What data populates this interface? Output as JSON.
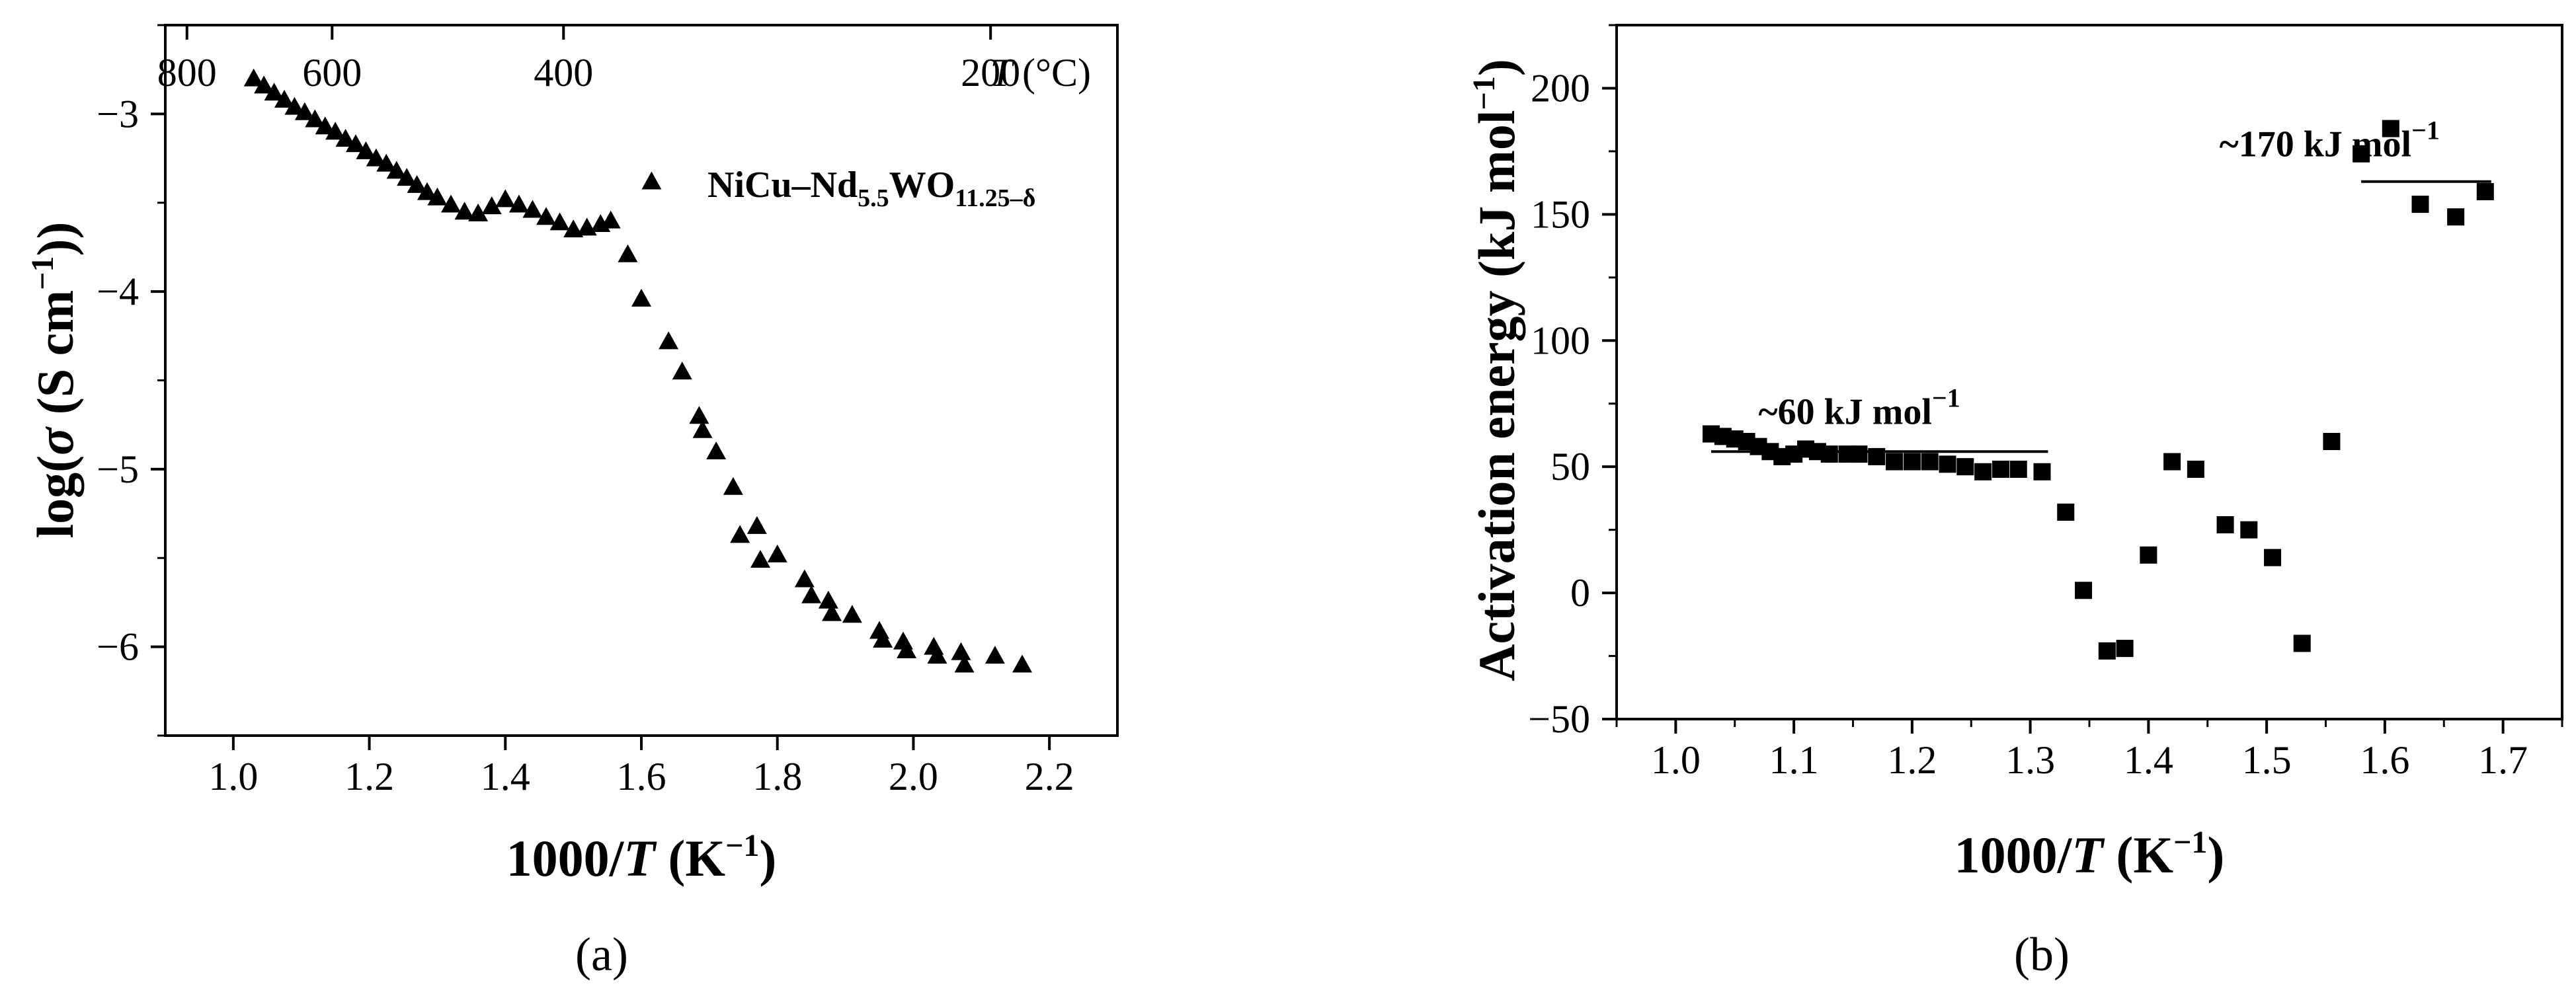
{
  "chart_data": [
    {
      "type": "scatter",
      "panel_label": "(a)",
      "marker": "triangle",
      "xlabel_prefix": "1000/",
      "xlabel_var": "T",
      "xlabel_unit": " (K",
      "xlabel_exp": "−1",
      "xlabel_close": ")",
      "ylabel_prefix": "log(",
      "ylabel_sigma": "σ",
      "ylabel_unit": " (S cm",
      "ylabel_exp": "−1",
      "ylabel_close": "))",
      "xlim": [
        0.9,
        2.3
      ],
      "ylim": [
        -6.5,
        -2.5
      ],
      "x_ticks": [
        1.0,
        1.2,
        1.4,
        1.6,
        1.8,
        2.0,
        2.2
      ],
      "x_tick_labels": [
        "1.0",
        "1.2",
        "1.4",
        "1.6",
        "1.8",
        "2.0",
        "2.2"
      ],
      "y_ticks": [
        -3,
        -4,
        -5,
        -6
      ],
      "y_tick_labels": [
        "−3",
        "−4",
        "−5",
        "−6"
      ],
      "top_axis_values_celsius": [
        800,
        600,
        400,
        200
      ],
      "top_axis_labels": [
        "800",
        "600",
        "400",
        "200"
      ],
      "top_axis_title_var": "T",
      "top_axis_title_unit": " (°C)",
      "legend_text_main": "NiCu–Nd",
      "legend_sub1": "5.5",
      "legend_mid": "WO",
      "legend_sub2": "11.25–δ",
      "series": [
        {
          "name": "NiCu–Nd5.5WO11.25–δ",
          "x": [
            1.03,
            1.045,
            1.06,
            1.075,
            1.09,
            1.105,
            1.12,
            1.135,
            1.15,
            1.165,
            1.18,
            1.195,
            1.21,
            1.225,
            1.24,
            1.255,
            1.27,
            1.285,
            1.3,
            1.32,
            1.34,
            1.36,
            1.38,
            1.4,
            1.42,
            1.44,
            1.46,
            1.48,
            1.5,
            1.52,
            1.54,
            1.555,
            1.58,
            1.6,
            1.615,
            1.64,
            1.66,
            1.685,
            1.69,
            1.71,
            1.735,
            1.745,
            1.77,
            1.775,
            1.8,
            1.84,
            1.85,
            1.875,
            1.88,
            1.91,
            1.95,
            1.955,
            1.985,
            1.99,
            2.03,
            2.035,
            2.07,
            2.075,
            2.12,
            2.16
          ],
          "y": [
            -2.8,
            -2.84,
            -2.88,
            -2.92,
            -2.96,
            -2.99,
            -3.03,
            -3.07,
            -3.1,
            -3.14,
            -3.17,
            -3.21,
            -3.25,
            -3.28,
            -3.32,
            -3.36,
            -3.4,
            -3.44,
            -3.47,
            -3.51,
            -3.55,
            -3.56,
            -3.52,
            -3.48,
            -3.51,
            -3.54,
            -3.58,
            -3.61,
            -3.65,
            -3.64,
            -3.62,
            -3.6,
            -3.79,
            -4.04,
            -3.38,
            -4.28,
            -4.45,
            -4.7,
            -4.78,
            -4.9,
            -5.1,
            -5.37,
            -5.32,
            -5.51,
            -5.48,
            -5.62,
            -5.71,
            -5.74,
            -5.81,
            -5.82,
            -5.91,
            -5.96,
            -5.97,
            -6.02,
            -6.0,
            -6.05,
            -6.03,
            -6.1,
            -6.05,
            -6.1
          ]
        }
      ]
    },
    {
      "type": "scatter",
      "panel_label": "(b)",
      "marker": "square",
      "xlabel_prefix": "1000/",
      "xlabel_var": "T",
      "xlabel_unit": " (K",
      "xlabel_exp": "−1",
      "xlabel_close": ")",
      "ylabel_main": "Activation energy (kJ mol",
      "ylabel_exp": "−1",
      "ylabel_close": ")",
      "xlim": [
        0.95,
        1.75
      ],
      "ylim": [
        -50,
        225
      ],
      "x_ticks": [
        1.0,
        1.1,
        1.2,
        1.3,
        1.4,
        1.5,
        1.6,
        1.7
      ],
      "x_tick_labels": [
        "1.0",
        "1.1",
        "1.2",
        "1.3",
        "1.4",
        "1.5",
        "1.6",
        "1.7"
      ],
      "y_ticks": [
        -50,
        0,
        50,
        100,
        150,
        200
      ],
      "y_tick_labels": [
        "−50",
        "0",
        "50",
        "100",
        "150",
        "200"
      ],
      "fit_lines": [
        {
          "x": [
            1.03,
            1.315
          ],
          "y": [
            56,
            56
          ]
        },
        {
          "x": [
            1.58,
            1.69
          ],
          "y": [
            163,
            163
          ]
        }
      ],
      "annotations": [
        {
          "main": "~60 kJ mol",
          "exp": "−1",
          "x": 1.07,
          "y": 67
        },
        {
          "main": "~170 kJ mol",
          "exp": "−1",
          "x": 1.46,
          "y": 173
        }
      ],
      "series": [
        {
          "name": "Activation energy",
          "x": [
            1.03,
            1.04,
            1.05,
            1.06,
            1.07,
            1.08,
            1.09,
            1.1,
            1.11,
            1.12,
            1.13,
            1.145,
            1.155,
            1.17,
            1.185,
            1.2,
            1.215,
            1.23,
            1.245,
            1.26,
            1.275,
            1.29,
            1.31,
            1.33,
            1.345,
            1.365,
            1.38,
            1.4,
            1.42,
            1.44,
            1.465,
            1.485,
            1.505,
            1.53,
            1.555,
            1.58,
            1.605,
            1.63,
            1.66,
            1.685
          ],
          "y": [
            63,
            62,
            61,
            60,
            58,
            56,
            54,
            55,
            57,
            56,
            55,
            55,
            55,
            54,
            52,
            52,
            52,
            51,
            50,
            48,
            49,
            49,
            48,
            32,
            1,
            -23,
            -22,
            15,
            52,
            49,
            27,
            25,
            14,
            -20,
            60,
            174,
            184,
            154,
            149,
            159
          ]
        }
      ]
    }
  ]
}
